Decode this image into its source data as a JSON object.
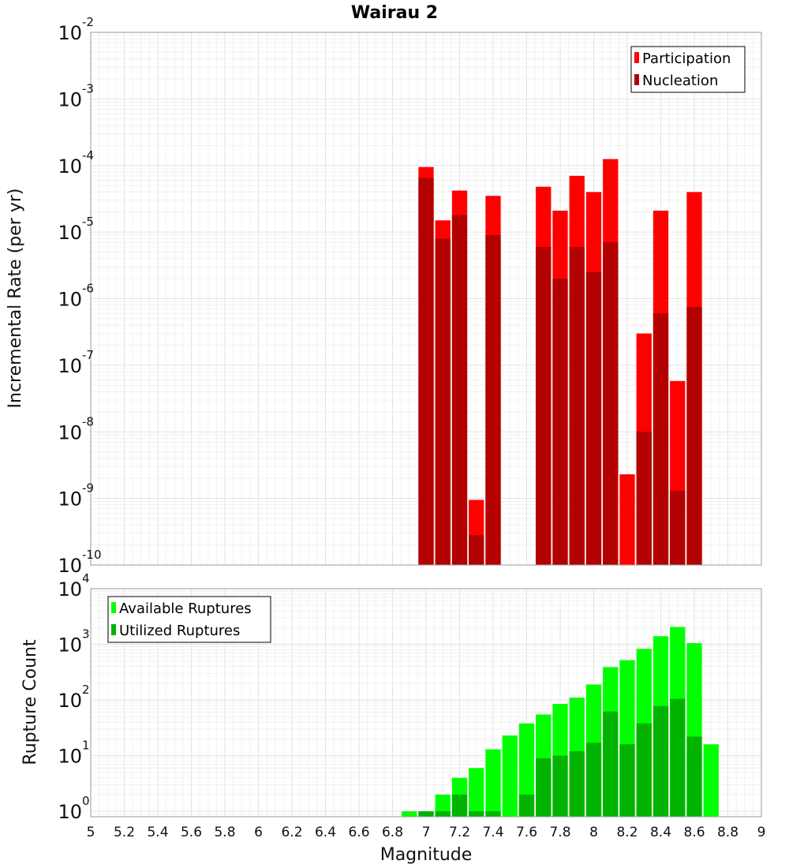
{
  "chart_data": [
    {
      "type": "bar",
      "title": "Wairau 2",
      "xlabel": "",
      "ylabel": "Incremental Rate (per yr)",
      "yscale": "log",
      "ylim": [
        1e-10,
        0.01
      ],
      "xlim": [
        5,
        9
      ],
      "yticks": [
        {
          "base": "10",
          "exp": "-10"
        },
        {
          "base": "10",
          "exp": "-9"
        },
        {
          "base": "10",
          "exp": "-8"
        },
        {
          "base": "10",
          "exp": "-7"
        },
        {
          "base": "10",
          "exp": "-6"
        },
        {
          "base": "10",
          "exp": "-5"
        },
        {
          "base": "10",
          "exp": "-4"
        },
        {
          "base": "10",
          "exp": "-3"
        },
        {
          "base": "10",
          "exp": "-2"
        }
      ],
      "grid": true,
      "legend_position": "top-right",
      "x": [
        7.0,
        7.1,
        7.2,
        7.3,
        7.4,
        7.5,
        7.6,
        7.7,
        7.8,
        7.9,
        8.0,
        8.1,
        8.2,
        8.3,
        8.4,
        8.5,
        8.6,
        8.7
      ],
      "series": [
        {
          "name": "Participation",
          "color": "#ff0000",
          "values": [
            9.5e-05,
            1.5e-05,
            4.2e-05,
            9.5e-10,
            3.5e-05,
            null,
            null,
            4.8e-05,
            2.1e-05,
            7e-05,
            4e-05,
            0.000125,
            2.3e-09,
            3e-07,
            2.1e-05,
            5.8e-08,
            4e-05,
            null
          ]
        },
        {
          "name": "Nucleation",
          "color": "#b30000",
          "values": [
            6.5e-05,
            8e-06,
            1.8e-05,
            2.8e-10,
            9e-06,
            null,
            null,
            6e-06,
            2e-06,
            6e-06,
            2.5e-06,
            7e-06,
            null,
            1e-08,
            6e-07,
            1.3e-09,
            7.5e-07,
            null
          ]
        }
      ]
    },
    {
      "type": "bar",
      "title": "",
      "xlabel": "Magnitude",
      "ylabel": "Rupture Count",
      "yscale": "log",
      "ylim": [
        0.8,
        10000
      ],
      "xlim": [
        5,
        9
      ],
      "yticks": [
        {
          "base": "10",
          "exp": "0"
        },
        {
          "base": "10",
          "exp": "1"
        },
        {
          "base": "10",
          "exp": "2"
        },
        {
          "base": "10",
          "exp": "3"
        },
        {
          "base": "10",
          "exp": "4"
        }
      ],
      "xticks": [
        "5",
        "5.2",
        "5.4",
        "5.6",
        "5.8",
        "6",
        "6.2",
        "6.4",
        "6.6",
        "6.8",
        "7",
        "7.2",
        "7.4",
        "7.6",
        "7.8",
        "8",
        "8.2",
        "8.4",
        "8.6",
        "8.8",
        "9"
      ],
      "grid": true,
      "legend_position": "top-left",
      "x": [
        6.9,
        7.0,
        7.1,
        7.2,
        7.3,
        7.4,
        7.5,
        7.6,
        7.7,
        7.8,
        7.9,
        8.0,
        8.1,
        8.2,
        8.3,
        8.4,
        8.5,
        8.6,
        8.7,
        8.8
      ],
      "series": [
        {
          "name": "Available Ruptures",
          "color": "#00ff00",
          "values": [
            1,
            1,
            2,
            4,
            6,
            13,
            23,
            38,
            55,
            85,
            110,
            190,
            390,
            520,
            830,
            1400,
            2050,
            1050,
            16,
            null
          ]
        },
        {
          "name": "Utilized Ruptures",
          "color": "#00b300",
          "values": [
            null,
            1,
            1,
            2,
            1,
            1,
            null,
            2,
            9,
            10,
            12,
            17,
            62,
            16,
            38,
            78,
            105,
            22,
            null,
            null
          ]
        }
      ]
    }
  ]
}
